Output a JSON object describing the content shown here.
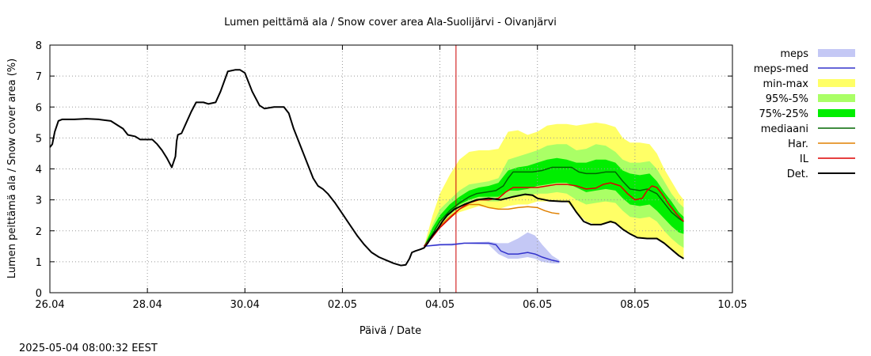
{
  "chart_data": {
    "type": "line",
    "title": "Lumen peittämä ala / Snow cover area Ala-Suolijärvi - Oivanjärvi",
    "xlabel": "Päivä / Date",
    "ylabel": "Lumen peittämä ala / Snow cover area (%)",
    "timestamp": "2025-05-04 08:00:32 EEST",
    "xlim": [
      0,
      14
    ],
    "ylim": [
      0,
      8
    ],
    "y_ticks": [
      0,
      1,
      2,
      3,
      4,
      5,
      6,
      7,
      8
    ],
    "x_ticks": [
      {
        "x": 0,
        "label": "26.04"
      },
      {
        "x": 2,
        "label": "28.04"
      },
      {
        "x": 4,
        "label": "30.04"
      },
      {
        "x": 6,
        "label": "02.05"
      },
      {
        "x": 8,
        "label": "04.05"
      },
      {
        "x": 10,
        "label": "06.05"
      },
      {
        "x": 12,
        "label": "08.05"
      },
      {
        "x": 14,
        "label": "10.05"
      }
    ],
    "grid": true,
    "legend_position": "right",
    "forecast_start": 8.33,
    "colors": {
      "meps": "#c4c8f5",
      "meps_med": "#3333cc",
      "minmax": "#ffff66",
      "p95_5": "#aaff66",
      "p75_25": "#00ee00",
      "mediaani": "#006600",
      "har": "#e08000",
      "il": "#dd0000",
      "det": "#000000",
      "now_line": "#cc0000",
      "grid": "#999999"
    },
    "legend": [
      {
        "key": "meps",
        "label": "meps",
        "style": "band"
      },
      {
        "key": "meps_med",
        "label": "meps-med",
        "style": "line"
      },
      {
        "key": "minmax",
        "label": "min-max",
        "style": "band"
      },
      {
        "key": "p95_5",
        "label": "95%-5%",
        "style": "band"
      },
      {
        "key": "p75_25",
        "label": "75%-25%",
        "style": "band"
      },
      {
        "key": "mediaani",
        "label": "mediaani",
        "style": "line"
      },
      {
        "key": "har",
        "label": "Har.",
        "style": "line"
      },
      {
        "key": "il",
        "label": "IL",
        "style": "line"
      },
      {
        "key": "det",
        "label": "Det.",
        "style": "line"
      }
    ],
    "series": {
      "det": [
        [
          0,
          4.7
        ],
        [
          0.1,
          4.8
        ],
        [
          0.2,
          5.2
        ],
        [
          0.35,
          5.55
        ],
        [
          0.5,
          5.6
        ],
        [
          1,
          5.6
        ],
        [
          1.5,
          5.62
        ],
        [
          2,
          5.6
        ],
        [
          2.5,
          5.55
        ],
        [
          2.8,
          5.4
        ],
        [
          3,
          5.3
        ],
        [
          3.2,
          5.1
        ],
        [
          3.5,
          5.05
        ],
        [
          3.7,
          4.95
        ],
        [
          4.2,
          4.95
        ],
        [
          4.4,
          4.8
        ],
        [
          4.6,
          4.6
        ],
        [
          4.8,
          4.35
        ],
        [
          5,
          4.05
        ],
        [
          5.15,
          4.4
        ],
        [
          5.2,
          4.9
        ],
        [
          5.25,
          5.1
        ],
        [
          5.4,
          5.15
        ],
        [
          5.6,
          5.5
        ],
        [
          5.8,
          5.85
        ],
        [
          6,
          6.15
        ],
        [
          6.3,
          6.15
        ],
        [
          6.5,
          6.1
        ],
        [
          6.8,
          6.15
        ],
        [
          7.0,
          6.5
        ],
        [
          7.3,
          7.15
        ],
        [
          7.6,
          7.2
        ],
        [
          7.8,
          7.2
        ],
        [
          8.0,
          7.1
        ],
        [
          8.3,
          6.5
        ],
        [
          8.6,
          6.05
        ],
        [
          8.8,
          5.95
        ],
        [
          9.2,
          6
        ],
        [
          9.6,
          6
        ],
        [
          9.8,
          5.8
        ],
        [
          10.0,
          5.3
        ],
        [
          10.2,
          4.9
        ],
        [
          10.4,
          4.5
        ],
        [
          10.6,
          4.1
        ],
        [
          10.8,
          3.7
        ],
        [
          11,
          3.45
        ],
        [
          11.2,
          3.35
        ],
        [
          11.4,
          3.2
        ],
        [
          11.7,
          2.9
        ],
        [
          12,
          2.55
        ],
        [
          12.3,
          2.2
        ],
        [
          12.6,
          1.85
        ],
        [
          12.9,
          1.55
        ],
        [
          13.2,
          1.3
        ],
        [
          13.5,
          1.15
        ],
        [
          13.8,
          1.05
        ],
        [
          14.1,
          0.95
        ],
        [
          14.4,
          0.88
        ],
        [
          14.6,
          0.9
        ],
        [
          14.75,
          1.1
        ],
        [
          14.85,
          1.3
        ],
        [
          15.0,
          1.35
        ],
        [
          15.2,
          1.4
        ],
        [
          15.35,
          1.45
        ],
        [
          15.5,
          1.6
        ],
        [
          15.7,
          1.85
        ],
        [
          15.9,
          2.05
        ],
        [
          16.1,
          2.3
        ],
        [
          16.3,
          2.5
        ],
        [
          16.6,
          2.7
        ],
        [
          17,
          2.85
        ],
        [
          17.5,
          3
        ],
        [
          18,
          3.05
        ],
        [
          18.5,
          3.0
        ],
        [
          19,
          3.1
        ],
        [
          19.5,
          3.18
        ],
        [
          19.8,
          3.15
        ],
        [
          20,
          3.05
        ],
        [
          20.5,
          2.97
        ],
        [
          21,
          2.95
        ],
        [
          21.3,
          2.95
        ],
        [
          21.6,
          2.6
        ],
        [
          21.9,
          2.3
        ],
        [
          22.2,
          2.2
        ],
        [
          22.6,
          2.2
        ],
        [
          23,
          2.3
        ],
        [
          23.2,
          2.25
        ],
        [
          23.5,
          2.05
        ],
        [
          23.8,
          1.9
        ],
        [
          24.1,
          1.78
        ],
        [
          24.5,
          1.75
        ],
        [
          24.9,
          1.75
        ],
        [
          25.2,
          1.6
        ],
        [
          25.5,
          1.4
        ],
        [
          25.8,
          1.2
        ],
        [
          26,
          1.1
        ]
      ],
      "meps_med": [
        [
          15.35,
          1.5
        ],
        [
          16,
          1.55
        ],
        [
          16.5,
          1.55
        ],
        [
          17,
          1.6
        ],
        [
          17.5,
          1.6
        ],
        [
          18,
          1.6
        ],
        [
          18.3,
          1.55
        ],
        [
          18.5,
          1.35
        ],
        [
          18.8,
          1.25
        ],
        [
          19.2,
          1.25
        ],
        [
          19.6,
          1.3
        ],
        [
          19.9,
          1.25
        ],
        [
          20.2,
          1.15
        ],
        [
          20.6,
          1.05
        ],
        [
          20.9,
          1.0
        ]
      ],
      "mediaani": [
        [
          15.35,
          1.5
        ],
        [
          15.7,
          1.9
        ],
        [
          16,
          2.3
        ],
        [
          16.4,
          2.65
        ],
        [
          16.8,
          2.9
        ],
        [
          17.2,
          3.1
        ],
        [
          17.5,
          3.2
        ],
        [
          17.9,
          3.25
        ],
        [
          18.3,
          3.3
        ],
        [
          18.6,
          3.45
        ],
        [
          18.8,
          3.7
        ],
        [
          19,
          3.9
        ],
        [
          19.4,
          3.9
        ],
        [
          19.8,
          3.9
        ],
        [
          20.2,
          3.95
        ],
        [
          20.6,
          4.05
        ],
        [
          21,
          4.05
        ],
        [
          21.4,
          4.05
        ],
        [
          21.7,
          3.9
        ],
        [
          22,
          3.85
        ],
        [
          22.4,
          3.85
        ],
        [
          22.8,
          3.9
        ],
        [
          23.2,
          3.9
        ],
        [
          23.5,
          3.6
        ],
        [
          23.8,
          3.35
        ],
        [
          24.2,
          3.3
        ],
        [
          24.5,
          3.35
        ],
        [
          24.9,
          3.2
        ],
        [
          25.2,
          2.9
        ],
        [
          25.5,
          2.6
        ],
        [
          25.8,
          2.4
        ],
        [
          26,
          2.3
        ]
      ],
      "har": [
        [
          15.35,
          1.5
        ],
        [
          15.7,
          1.85
        ],
        [
          16,
          2.15
        ],
        [
          16.4,
          2.45
        ],
        [
          16.8,
          2.7
        ],
        [
          17.2,
          2.85
        ],
        [
          17.6,
          2.85
        ],
        [
          18,
          2.75
        ],
        [
          18.4,
          2.7
        ],
        [
          18.8,
          2.7
        ],
        [
          19.2,
          2.75
        ],
        [
          19.6,
          2.78
        ],
        [
          20,
          2.75
        ],
        [
          20.3,
          2.65
        ],
        [
          20.6,
          2.58
        ],
        [
          20.9,
          2.55
        ]
      ],
      "il": [
        [
          15.35,
          1.5
        ],
        [
          15.7,
          1.8
        ],
        [
          16,
          2.1
        ],
        [
          16.4,
          2.4
        ],
        [
          16.8,
          2.7
        ],
        [
          17.2,
          2.9
        ],
        [
          17.6,
          3.0
        ],
        [
          18,
          3.0
        ],
        [
          18.4,
          3.05
        ],
        [
          18.7,
          3.25
        ],
        [
          19,
          3.4
        ],
        [
          19.5,
          3.4
        ],
        [
          20,
          3.4
        ],
        [
          20.4,
          3.45
        ],
        [
          20.8,
          3.5
        ],
        [
          21.2,
          3.5
        ],
        [
          21.6,
          3.45
        ],
        [
          22,
          3.35
        ],
        [
          22.4,
          3.38
        ],
        [
          22.7,
          3.5
        ],
        [
          23,
          3.55
        ],
        [
          23.4,
          3.45
        ],
        [
          23.7,
          3.2
        ],
        [
          24,
          3.0
        ],
        [
          24.3,
          3.05
        ],
        [
          24.5,
          3.3
        ],
        [
          24.7,
          3.45
        ],
        [
          24.9,
          3.4
        ],
        [
          25.1,
          3.2
        ],
        [
          25.4,
          2.85
        ],
        [
          25.7,
          2.55
        ],
        [
          26,
          2.3
        ]
      ]
    },
    "bands": {
      "meps": [
        [
          15.35,
          1.48,
          1.52
        ],
        [
          16,
          1.52,
          1.58
        ],
        [
          17,
          1.58,
          1.62
        ],
        [
          18,
          1.55,
          1.65
        ],
        [
          18.4,
          1.25,
          1.6
        ],
        [
          18.8,
          1.1,
          1.6
        ],
        [
          19.2,
          1.1,
          1.75
        ],
        [
          19.6,
          1.15,
          1.95
        ],
        [
          19.9,
          1.1,
          1.85
        ],
        [
          20.2,
          1.0,
          1.55
        ],
        [
          20.6,
          0.95,
          1.2
        ],
        [
          20.9,
          0.95,
          1.05
        ]
      ],
      "minmax": [
        [
          15.35,
          1.5,
          1.5
        ],
        [
          15.7,
          1.8,
          2.5
        ],
        [
          16,
          2.1,
          3.2
        ],
        [
          16.4,
          2.4,
          3.8
        ],
        [
          16.8,
          2.6,
          4.3
        ],
        [
          17.2,
          2.7,
          4.55
        ],
        [
          17.6,
          2.8,
          4.6
        ],
        [
          18,
          2.75,
          4.6
        ],
        [
          18.4,
          2.7,
          4.65
        ],
        [
          18.8,
          2.8,
          5.2
        ],
        [
          19.2,
          2.85,
          5.25
        ],
        [
          19.6,
          2.85,
          5.1
        ],
        [
          20,
          2.95,
          5.2
        ],
        [
          20.4,
          2.95,
          5.4
        ],
        [
          20.8,
          2.95,
          5.45
        ],
        [
          21.2,
          2.95,
          5.45
        ],
        [
          21.6,
          2.6,
          5.4
        ],
        [
          22,
          2.3,
          5.45
        ],
        [
          22.4,
          2.2,
          5.5
        ],
        [
          22.8,
          2.25,
          5.45
        ],
        [
          23.2,
          2.25,
          5.35
        ],
        [
          23.5,
          2.05,
          5.0
        ],
        [
          23.8,
          1.9,
          4.85
        ],
        [
          24.2,
          1.78,
          4.85
        ],
        [
          24.6,
          1.75,
          4.8
        ],
        [
          24.9,
          1.75,
          4.5
        ],
        [
          25.2,
          1.6,
          4.0
        ],
        [
          25.5,
          1.4,
          3.6
        ],
        [
          25.8,
          1.2,
          3.2
        ],
        [
          26,
          1.1,
          3.0
        ]
      ],
      "p95_5": [
        [
          15.35,
          1.5,
          1.5
        ],
        [
          15.7,
          1.85,
          2.2
        ],
        [
          16,
          2.2,
          2.7
        ],
        [
          16.4,
          2.5,
          3.0
        ],
        [
          16.8,
          2.75,
          3.3
        ],
        [
          17.2,
          2.9,
          3.5
        ],
        [
          17.6,
          3.0,
          3.55
        ],
        [
          18,
          2.95,
          3.6
        ],
        [
          18.4,
          2.95,
          3.7
        ],
        [
          18.8,
          3.1,
          4.3
        ],
        [
          19.2,
          3.1,
          4.4
        ],
        [
          19.6,
          3.15,
          4.5
        ],
        [
          20,
          3.2,
          4.6
        ],
        [
          20.4,
          3.2,
          4.75
        ],
        [
          20.8,
          3.25,
          4.8
        ],
        [
          21.2,
          3.2,
          4.8
        ],
        [
          21.6,
          3.0,
          4.6
        ],
        [
          22,
          2.85,
          4.65
        ],
        [
          22.4,
          2.9,
          4.8
        ],
        [
          22.8,
          2.95,
          4.75
        ],
        [
          23.2,
          2.9,
          4.55
        ],
        [
          23.5,
          2.65,
          4.3
        ],
        [
          23.8,
          2.45,
          4.2
        ],
        [
          24.2,
          2.4,
          4.2
        ],
        [
          24.6,
          2.45,
          4.25
        ],
        [
          24.9,
          2.3,
          4.0
        ],
        [
          25.2,
          2.0,
          3.6
        ],
        [
          25.5,
          1.75,
          3.2
        ],
        [
          25.8,
          1.55,
          2.9
        ],
        [
          26,
          1.45,
          2.75
        ]
      ],
      "p75_25": [
        [
          15.35,
          1.5,
          1.5
        ],
        [
          15.7,
          1.9,
          2.1
        ],
        [
          16,
          2.3,
          2.5
        ],
        [
          16.4,
          2.6,
          2.85
        ],
        [
          16.8,
          2.85,
          3.1
        ],
        [
          17.2,
          3.0,
          3.3
        ],
        [
          17.6,
          3.1,
          3.4
        ],
        [
          18,
          3.1,
          3.45
        ],
        [
          18.4,
          3.1,
          3.55
        ],
        [
          18.8,
          3.3,
          3.95
        ],
        [
          19.2,
          3.3,
          4.05
        ],
        [
          19.6,
          3.35,
          4.1
        ],
        [
          20,
          3.45,
          4.2
        ],
        [
          20.4,
          3.5,
          4.3
        ],
        [
          20.8,
          3.55,
          4.35
        ],
        [
          21.2,
          3.55,
          4.3
        ],
        [
          21.6,
          3.4,
          4.2
        ],
        [
          22,
          3.25,
          4.2
        ],
        [
          22.4,
          3.3,
          4.3
        ],
        [
          22.8,
          3.35,
          4.3
        ],
        [
          23.2,
          3.3,
          4.2
        ],
        [
          23.5,
          3.05,
          3.95
        ],
        [
          23.8,
          2.85,
          3.85
        ],
        [
          24.2,
          2.8,
          3.8
        ],
        [
          24.6,
          2.85,
          3.85
        ],
        [
          24.9,
          2.65,
          3.6
        ],
        [
          25.2,
          2.4,
          3.25
        ],
        [
          25.5,
          2.15,
          2.95
        ],
        [
          25.8,
          1.95,
          2.6
        ],
        [
          26,
          1.9,
          2.45
        ]
      ]
    }
  }
}
